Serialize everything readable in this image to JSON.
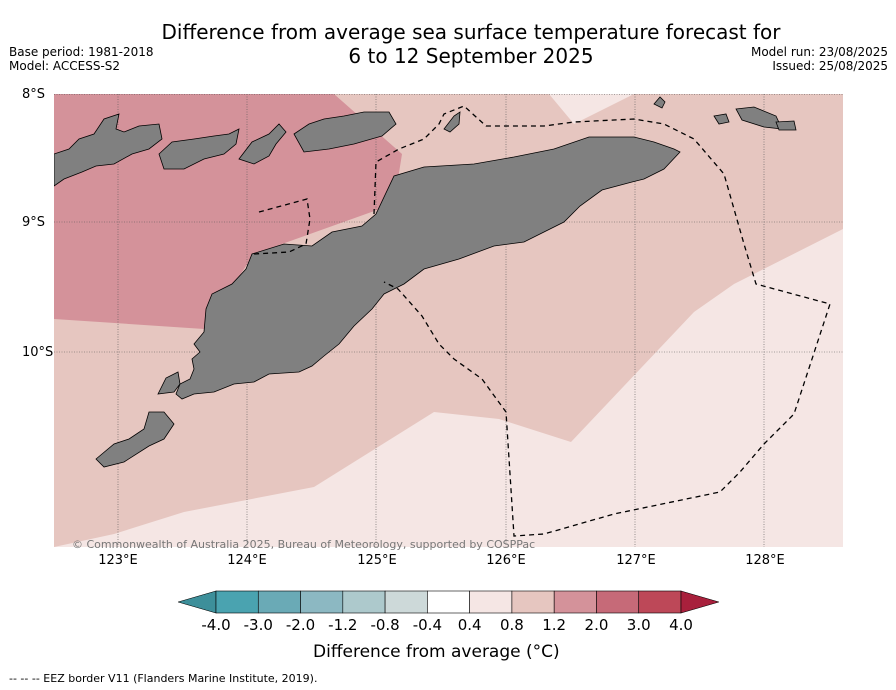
{
  "title_line1": "Difference from average sea surface temperature forecast for",
  "title_line2": "6 to 12 September 2025",
  "base_period": "Base period: 1981-2018",
  "model": "Model: ACCESS-S2",
  "model_run": "Model run: 23/08/2025",
  "issued": "Issued: 25/08/2025",
  "lat_labels": [
    "8°S",
    "9°S",
    "10°S"
  ],
  "lon_labels": [
    "123°E",
    "124°E",
    "125°E",
    "126°E",
    "127°E",
    "128°E"
  ],
  "copyright": "© Commonwealth of Australia 2025, Bureau of Meteorology, supported by COSPPac",
  "colorbar": {
    "ticks": [
      "-4.0",
      "-3.0",
      "-2.0",
      "-1.2",
      "-0.8",
      "-0.4",
      "0.4",
      "0.8",
      "1.2",
      "2.0",
      "3.0",
      "4.0"
    ],
    "colors": [
      "#3d8f9a",
      "#4aa3b0",
      "#6aaab6",
      "#8cb8c2",
      "#adc9cc",
      "#cdd9d9",
      "#ffffff",
      "#f5e6e4",
      "#e6c6c0",
      "#d4929a",
      "#c66a78",
      "#bd4858",
      "#a8203c"
    ],
    "label": "Difference from average (°C)"
  },
  "legend_note": "--  --  -- EEZ border V11 (Flanders Marine Institute, 2019).",
  "map_colors": {
    "land": "#808080",
    "warm_2_3": "#d4929a",
    "warm_1_2": "#e6c6c0",
    "warm_04_08": "#f5e6e4"
  }
}
